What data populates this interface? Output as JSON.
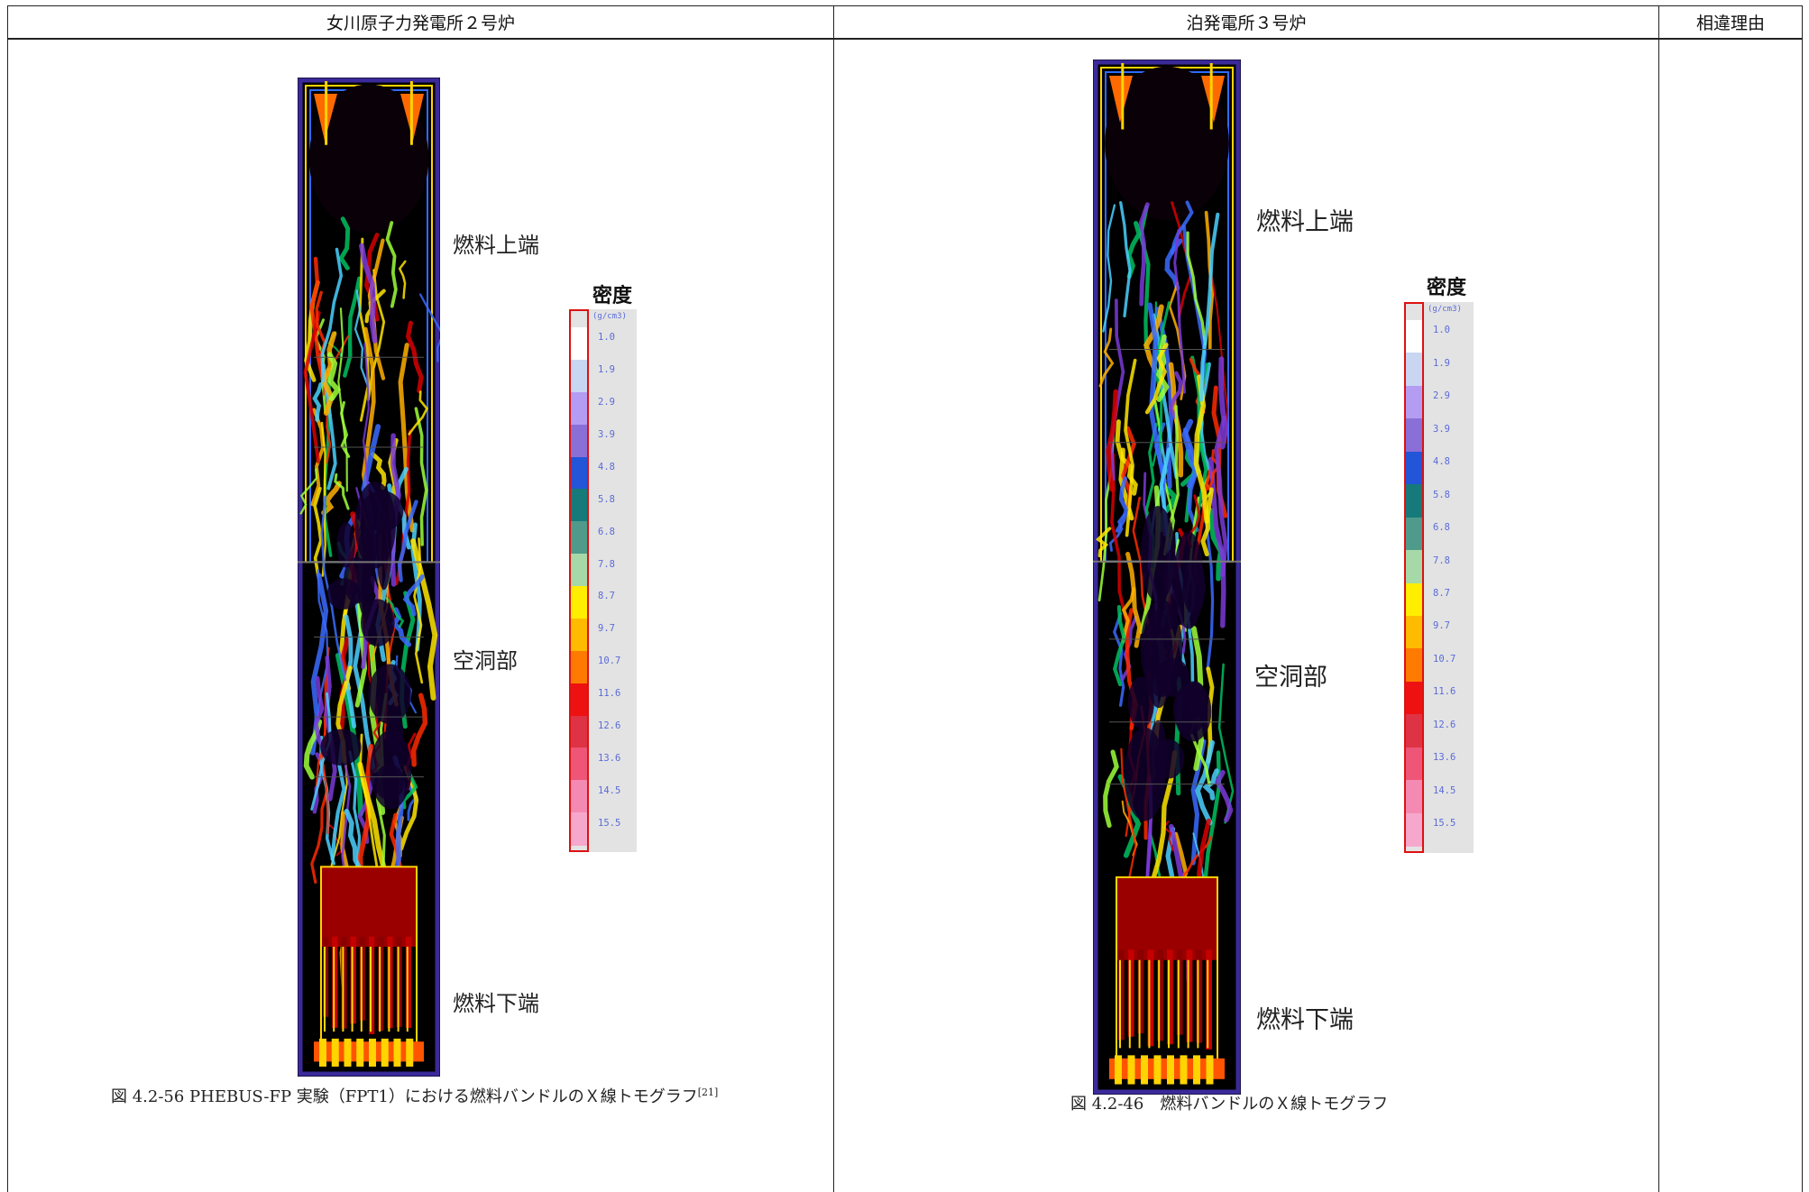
{
  "table": {
    "headers": [
      "女川原子力発電所２号炉",
      "泊発電所３号炉",
      "相違理由"
    ]
  },
  "left": {
    "label_top": "燃料上端",
    "label_mid": "空洞部",
    "label_bottom": "燃料下端",
    "legend_title": "密度",
    "legend_unit": "(g/cm3)",
    "legend_ticks": [
      "1.0",
      "1.9",
      "2.9",
      "3.9",
      "4.8",
      "5.8",
      "6.8",
      "7.8",
      "8.7",
      "9.7",
      "10.7",
      "11.6",
      "12.6",
      "13.6",
      "14.5",
      "15.5"
    ],
    "caption_main": "図 4.2-56 PHEBUS-FP 実験（FPT1）における燃料バンドルのＸ線トモグラフ",
    "caption_ref": "[21]"
  },
  "right": {
    "label_top": "燃料上端",
    "label_mid": "空洞部",
    "label_bottom": "燃料下端",
    "legend_title": "密度",
    "legend_unit": "(g/cm3)",
    "legend_ticks": [
      "1.0",
      "1.9",
      "2.9",
      "3.9",
      "4.8",
      "5.8",
      "6.8",
      "7.8",
      "8.7",
      "9.7",
      "10.7",
      "11.6",
      "12.6",
      "13.6",
      "14.5",
      "15.5"
    ],
    "caption_main": "図 4.2-46　燃料バンドルのＸ線トモグラフ"
  },
  "legend_colors": [
    "#ffffff",
    "#c9d6f2",
    "#b49cf2",
    "#8a6fd6",
    "#2255d8",
    "#167a7a",
    "#4f9a8a",
    "#a6d8a8",
    "#ffee00",
    "#ffbb00",
    "#ff7a00",
    "#ee1111",
    "#dd3344",
    "#ee5577",
    "#f48ab2",
    "#f6a8cc"
  ]
}
